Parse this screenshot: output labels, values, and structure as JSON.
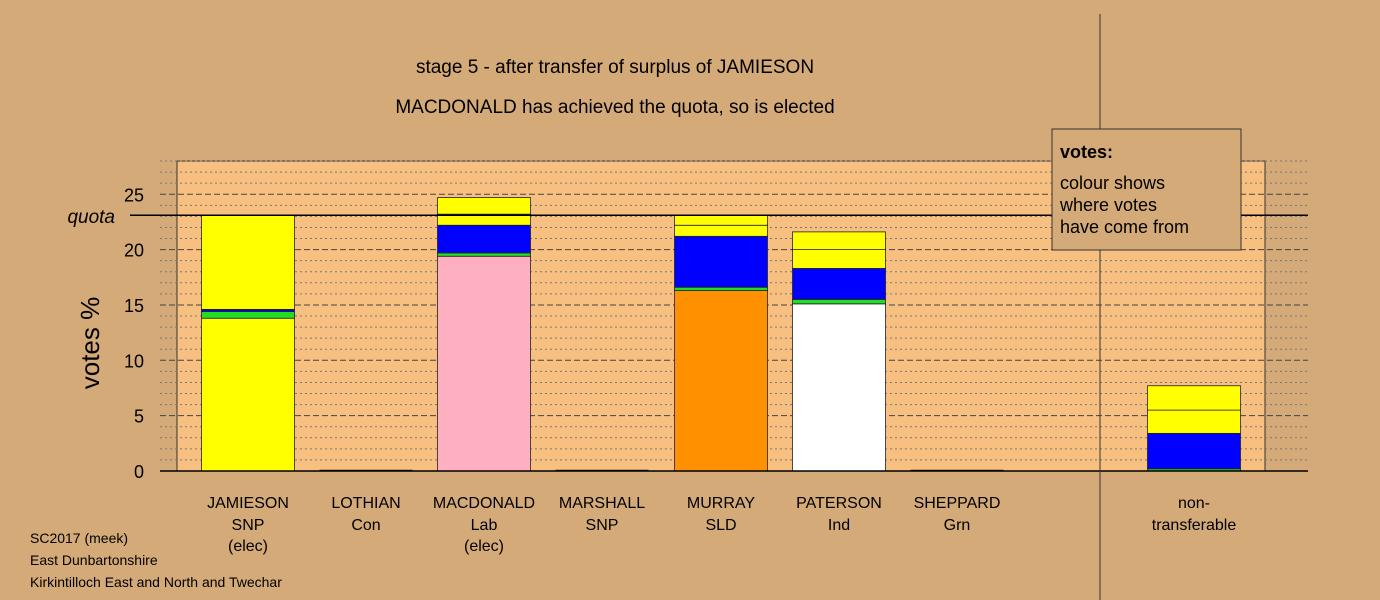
{
  "chart_data": {
    "type": "bar",
    "stacked": true,
    "title": "stage 5 - after transfer of surplus of JAMIESON",
    "subtitle": "MACDONALD has achieved the quota, so is elected",
    "ylabel": "votes %",
    "ylim": [
      0,
      28
    ],
    "yticks": [
      0,
      5,
      10,
      15,
      20,
      25
    ],
    "quota": 23.1,
    "quota_label": "quota",
    "grid": true,
    "legend": {
      "title": "votes:",
      "lines": [
        "colour shows",
        "where votes",
        "have come from"
      ],
      "placement": "top-right"
    },
    "candidates": [
      {
        "name": "JAMIESON",
        "party": "SNP",
        "status": "(elec)",
        "segments": [
          {
            "color": "#ffff00",
            "value": 13.8
          },
          {
            "color": "#22dd22",
            "value": 0.6
          },
          {
            "color": "#0000ff",
            "value": 0.2
          },
          {
            "color": "#ffff00",
            "value": 8.5
          }
        ]
      },
      {
        "name": "LOTHIAN",
        "party": "Con",
        "status": "",
        "segments": []
      },
      {
        "name": "MACDONALD",
        "party": "Lab",
        "status": "(elec)",
        "segments": [
          {
            "color": "#ffb0c0",
            "value": 19.4
          },
          {
            "color": "#22dd22",
            "value": 0.3
          },
          {
            "color": "#0000ff",
            "value": 2.5
          },
          {
            "color": "#ffff00",
            "value": 1.0
          },
          {
            "color": "#ffff00",
            "value": 1.5
          }
        ]
      },
      {
        "name": "MARSHALL",
        "party": "SNP",
        "status": "",
        "segments": []
      },
      {
        "name": "MURRAY",
        "party": "SLD",
        "status": "",
        "segments": [
          {
            "color": "#ff9000",
            "value": 16.3
          },
          {
            "color": "#22dd22",
            "value": 0.3
          },
          {
            "color": "#0000ff",
            "value": 4.6
          },
          {
            "color": "#ffff00",
            "value": 1.0
          },
          {
            "color": "#ffff00",
            "value": 0.9
          }
        ]
      },
      {
        "name": "PATERSON",
        "party": "Ind",
        "status": "",
        "segments": [
          {
            "color": "#ffffff",
            "value": 15.1
          },
          {
            "color": "#22dd22",
            "value": 0.4
          },
          {
            "color": "#0000ff",
            "value": 2.8
          },
          {
            "color": "#ffff00",
            "value": 1.7
          },
          {
            "color": "#ffff00",
            "value": 1.6
          }
        ]
      },
      {
        "name": "SHEPPARD",
        "party": "Grn",
        "status": "",
        "segments": []
      }
    ],
    "nontransferable": {
      "label_line1": "non-",
      "label_line2": "transferable",
      "segments": [
        {
          "color": "#22dd22",
          "value": 0.2
        },
        {
          "color": "#0000ff",
          "value": 3.2
        },
        {
          "color": "#ffff00",
          "value": 2.1
        },
        {
          "color": "#ffff00",
          "value": 2.2
        }
      ]
    }
  },
  "footer": {
    "line1": "SC2017 (meek)",
    "line2": "East Dunbartonshire",
    "line3": "Kirkintilloch East and North and Twechar"
  }
}
